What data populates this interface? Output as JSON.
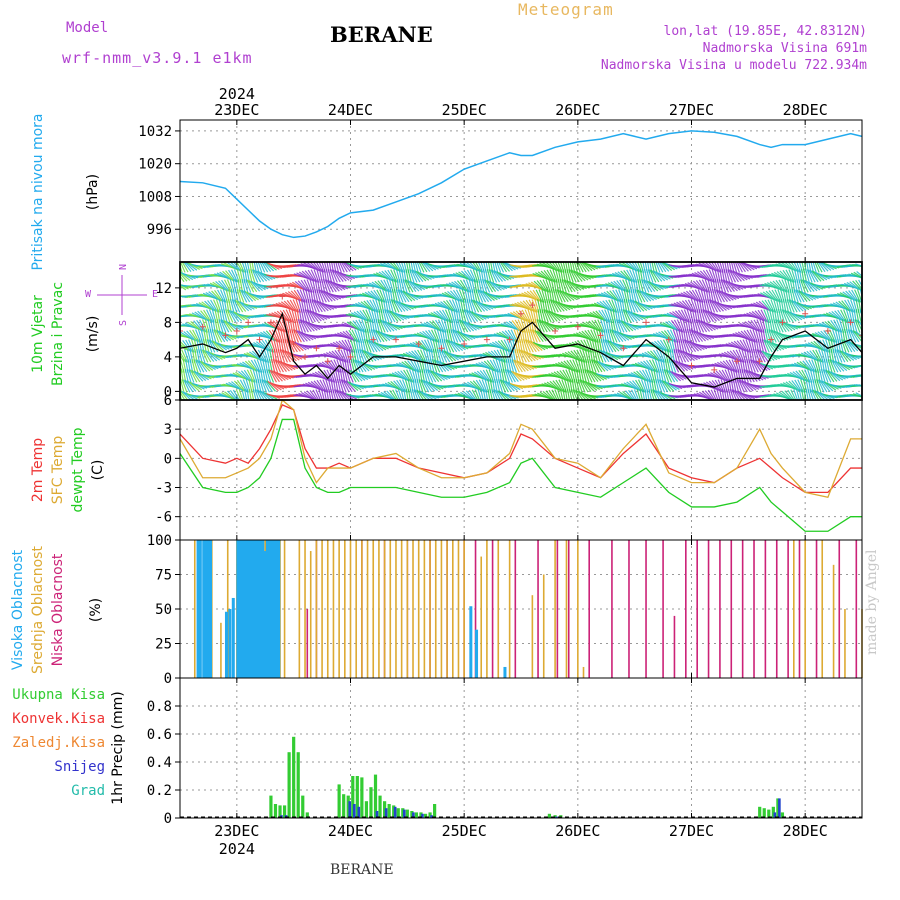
{
  "header": {
    "model_label": "Model",
    "model_name": "wrf-nmm_v3.9.1 e1km",
    "title": "BERANE",
    "meteogram": "Meteogram",
    "lonlat": "lon,lat (19.85E, 42.8312N)",
    "elevation": "Nadmorska Visina 691m",
    "model_elevation": "Nadmorska Visina u modelu 722.934m",
    "footer": "BERANE",
    "madeby": "made by Angel"
  },
  "dates": {
    "year": "2024",
    "labels": [
      "23DEC",
      "24DEC",
      "25DEC",
      "26DEC",
      "27DEC",
      "28DEC"
    ]
  },
  "colors": {
    "pressure": "#22aaee",
    "tempRed": "#ee3333",
    "tempYellow": "#ddaa33",
    "tempGreen": "#22cc22",
    "cloudHigh": "#22aaee",
    "cloudMid": "#ddaa33",
    "cloudLow": "#cc2277",
    "precipGreen": "#33cc33",
    "precipBlue": "#2244cc"
  },
  "chart_data": [
    {
      "type": "line",
      "panel": "pressure",
      "ylabel": "Pritisak na nivou mora",
      "unit": "(hPa)",
      "ylim": [
        984,
        1036
      ],
      "yticks": [
        996,
        1008,
        1020,
        1032
      ],
      "x_days": [
        22.5,
        22.7,
        22.9,
        23.0,
        23.1,
        23.2,
        23.3,
        23.4,
        23.5,
        23.6,
        23.7,
        23.8,
        23.9,
        24.0,
        24.2,
        24.4,
        24.6,
        24.8,
        25.0,
        25.2,
        25.4,
        25.5,
        25.6,
        25.8,
        26.0,
        26.2,
        26.4,
        26.6,
        26.8,
        27.0,
        27.2,
        27.4,
        27.6,
        27.7,
        27.8,
        28.0,
        28.2,
        28.4,
        28.5
      ],
      "values": [
        1013.5,
        1013,
        1011,
        1007,
        1003,
        999,
        996,
        994,
        993,
        993.5,
        995,
        997,
        1000,
        1002,
        1003,
        1006,
        1009,
        1013,
        1018,
        1021,
        1024,
        1023,
        1023,
        1026,
        1028,
        1029,
        1031,
        1029,
        1031,
        1032,
        1031.5,
        1030,
        1027,
        1026,
        1027,
        1027,
        1029,
        1031,
        1030
      ]
    },
    {
      "type": "line",
      "panel": "wind",
      "ylabel": "10m Vjetar",
      "ylabel2": "Brzina i Pravac",
      "unit": "(m/s)",
      "compass": {
        "north": "N",
        "south": "S",
        "west": "W",
        "east": "E"
      },
      "ylim": [
        -1,
        15
      ],
      "yticks": [
        0,
        4,
        8,
        12
      ],
      "x_days": [
        22.5,
        22.7,
        22.9,
        23.0,
        23.1,
        23.2,
        23.3,
        23.4,
        23.5,
        23.6,
        23.7,
        23.8,
        23.9,
        24.0,
        24.2,
        24.4,
        24.6,
        24.8,
        25.0,
        25.2,
        25.4,
        25.5,
        25.6,
        25.8,
        26.0,
        26.2,
        26.4,
        26.6,
        26.8,
        27.0,
        27.2,
        27.4,
        27.6,
        27.7,
        27.8,
        28.0,
        28.2,
        28.4,
        28.5
      ],
      "values": [
        5,
        5.5,
        4.5,
        5,
        6,
        4,
        6,
        9,
        3.5,
        2,
        3,
        1.5,
        3,
        2,
        4,
        4,
        3.5,
        3,
        3.5,
        4,
        4,
        7,
        8,
        5,
        5.5,
        4.5,
        3,
        6,
        4,
        1,
        0.5,
        1.5,
        1.5,
        4,
        6,
        7,
        5,
        6,
        4.5
      ]
    },
    {
      "type": "line",
      "panel": "temperature",
      "ylabel_2m": "2m Temp",
      "ylabel_sfc": "SFC Temp",
      "ylabel_dew": "dewpt Temp",
      "unit": "(C)",
      "ylim": [
        -8.4,
        6
      ],
      "yticks": [
        -6,
        -3,
        0,
        3,
        6
      ],
      "x_days": [
        22.5,
        22.7,
        22.9,
        23.0,
        23.1,
        23.2,
        23.3,
        23.4,
        23.5,
        23.6,
        23.7,
        23.8,
        23.9,
        24.0,
        24.2,
        24.4,
        24.6,
        24.8,
        25.0,
        25.2,
        25.4,
        25.5,
        25.6,
        25.8,
        26.0,
        26.2,
        26.4,
        26.6,
        26.8,
        27.0,
        27.2,
        27.4,
        27.6,
        27.7,
        27.8,
        28.0,
        28.2,
        28.4,
        28.5
      ],
      "series": [
        {
          "name": "2m Temp",
          "values": [
            2.5,
            0,
            -0.5,
            0,
            -0.5,
            1,
            3,
            5.5,
            5,
            1,
            -1,
            -1,
            -0.5,
            -1,
            0,
            0,
            -1,
            -1.5,
            -2,
            -1.5,
            0,
            2.5,
            2,
            0,
            -1,
            -2,
            0.5,
            2.5,
            -1,
            -2,
            -2.5,
            -1,
            0,
            -1,
            -2,
            -3.5,
            -3.5,
            -1,
            -1
          ]
        },
        {
          "name": "SFC Temp",
          "values": [
            2,
            -2,
            -2,
            -1.5,
            -1,
            0,
            2,
            6,
            5,
            0,
            -2.5,
            -1,
            -1,
            -1,
            0,
            0.5,
            -1,
            -2,
            -2,
            -1.5,
            0.5,
            3.5,
            3,
            0,
            -0.5,
            -2,
            1,
            3.5,
            -1.5,
            -2.5,
            -2.5,
            -1,
            3,
            0.5,
            -1,
            -3.5,
            -4,
            2,
            2
          ]
        },
        {
          "name": "dewpt Temp",
          "values": [
            0.5,
            -3,
            -3.5,
            -3.5,
            -3,
            -2,
            0,
            4,
            4,
            -1,
            -3,
            -3.5,
            -3.5,
            -3,
            -3,
            -3,
            -3.5,
            -4,
            -4,
            -3.5,
            -2.5,
            -0.5,
            0,
            -3,
            -3.5,
            -4,
            -2.5,
            -1,
            -3.5,
            -5,
            -5,
            -4.5,
            -3,
            -4.5,
            -5.5,
            -7.5,
            -7.5,
            -6,
            -6
          ]
        }
      ]
    },
    {
      "type": "bar",
      "panel": "clouds",
      "ylabel_high": "Visoka Oblacnost",
      "ylabel_mid": "Srednja Oblacnost",
      "ylabel_low": "Niska Oblacnost",
      "unit": "(%)",
      "ylim": [
        0,
        100
      ],
      "yticks": [
        0,
        25,
        50,
        75,
        100
      ],
      "high": {
        "x_days": [
          22.65,
          22.67,
          22.7,
          22.72,
          22.74,
          22.76,
          22.9,
          22.93,
          22.96,
          23.0,
          23.02,
          23.04,
          23.06,
          23.08,
          23.1,
          23.12,
          23.14,
          23.16,
          23.18,
          23.2,
          23.22,
          23.24,
          23.26,
          23.28,
          23.3,
          23.32,
          23.34,
          23.36,
          25.05,
          25.1,
          25.35
        ],
        "values": [
          100,
          100,
          100,
          100,
          100,
          100,
          48,
          50,
          58,
          100,
          100,
          100,
          100,
          100,
          100,
          100,
          100,
          100,
          100,
          100,
          100,
          92,
          100,
          100,
          100,
          100,
          100,
          100,
          52,
          35,
          8
        ]
      },
      "mid": {
        "x_days": [
          22.63,
          22.68,
          22.78,
          22.86,
          22.92,
          23.0,
          23.05,
          23.1,
          23.15,
          23.2,
          23.25,
          23.3,
          23.38,
          23.42,
          23.55,
          23.6,
          23.65,
          23.7,
          23.75,
          23.8,
          23.85,
          23.9,
          23.95,
          24.0,
          24.05,
          24.1,
          24.15,
          24.2,
          24.25,
          24.3,
          24.35,
          24.4,
          24.45,
          24.5,
          24.55,
          24.6,
          24.65,
          24.7,
          24.75,
          24.8,
          24.85,
          24.9,
          24.95,
          25.0,
          25.15,
          25.2,
          25.3,
          25.4,
          25.6,
          25.7,
          25.8,
          25.9,
          26.0,
          26.05,
          27.9,
          28.0,
          28.15,
          28.25,
          28.35,
          28.5
        ],
        "values": [
          100,
          100,
          100,
          40,
          100,
          100,
          100,
          100,
          100,
          100,
          100,
          100,
          100,
          100,
          100,
          100,
          92,
          100,
          100,
          100,
          100,
          100,
          100,
          100,
          100,
          100,
          100,
          100,
          100,
          100,
          100,
          100,
          100,
          100,
          100,
          100,
          100,
          100,
          100,
          100,
          100,
          100,
          100,
          100,
          88,
          100,
          100,
          100,
          60,
          75,
          100,
          100,
          100,
          8,
          100,
          100,
          100,
          82,
          50,
          50
        ]
      },
      "low": {
        "x_days": [
          23.62,
          23.7,
          24.1,
          24.3,
          24.5,
          24.7,
          24.85,
          25.0,
          25.1,
          25.25,
          25.45,
          25.65,
          25.82,
          25.92,
          26.1,
          26.3,
          26.45,
          26.6,
          26.75,
          26.85,
          26.95,
          27.05,
          27.15,
          27.25,
          27.35,
          27.45,
          27.55,
          27.65,
          27.75,
          27.85,
          27.95,
          28.1,
          28.3,
          28.45
        ],
        "values": [
          50,
          100,
          100,
          100,
          100,
          100,
          100,
          100,
          100,
          100,
          100,
          100,
          100,
          100,
          100,
          100,
          100,
          100,
          100,
          45,
          100,
          100,
          100,
          100,
          100,
          100,
          100,
          100,
          100,
          100,
          100,
          100,
          100,
          100
        ]
      }
    },
    {
      "type": "bar",
      "panel": "precip",
      "legend": [
        "Ukupna Kisa",
        "Konvek.Kisa",
        "Zaledj.Kisa",
        "Snijeg",
        "Grad"
      ],
      "ylabel": "1hr Precip (mm)",
      "ylim": [
        0,
        1.0
      ],
      "yticks": [
        0,
        0.2,
        0.4,
        0.6,
        0.8
      ],
      "total": {
        "x_days": [
          23.3,
          23.34,
          23.38,
          23.42,
          23.46,
          23.5,
          23.54,
          23.58,
          23.62,
          23.9,
          23.94,
          23.98,
          24.02,
          24.06,
          24.1,
          24.14,
          24.18,
          24.22,
          24.26,
          24.3,
          24.34,
          24.38,
          24.42,
          24.46,
          24.5,
          24.54,
          24.58,
          24.62,
          24.66,
          24.7,
          24.74,
          25.75,
          25.8,
          25.85,
          27.6,
          27.64,
          27.68,
          27.72,
          27.76,
          27.8
        ],
        "values": [
          0.16,
          0.1,
          0.09,
          0.09,
          0.47,
          0.58,
          0.47,
          0.16,
          0.04,
          0.24,
          0.17,
          0.16,
          0.3,
          0.3,
          0.29,
          0.12,
          0.22,
          0.31,
          0.16,
          0.12,
          0.1,
          0.09,
          0.07,
          0.07,
          0.06,
          0.05,
          0.04,
          0.04,
          0.03,
          0.04,
          0.1,
          0.03,
          0.02,
          0.02,
          0.08,
          0.07,
          0.06,
          0.08,
          0.14,
          0.04
        ]
      },
      "snow": {
        "x_days": [
          23.38,
          23.42,
          23.98,
          24.02,
          24.06,
          24.22,
          24.3,
          24.38,
          24.46,
          24.54,
          24.62,
          24.7,
          25.8,
          27.72,
          27.76
        ],
        "values": [
          0.02,
          0.02,
          0.12,
          0.1,
          0.08,
          0.05,
          0.07,
          0.08,
          0.06,
          0.04,
          0.03,
          0.02,
          0.01,
          0.04,
          0.14
        ]
      }
    }
  ]
}
